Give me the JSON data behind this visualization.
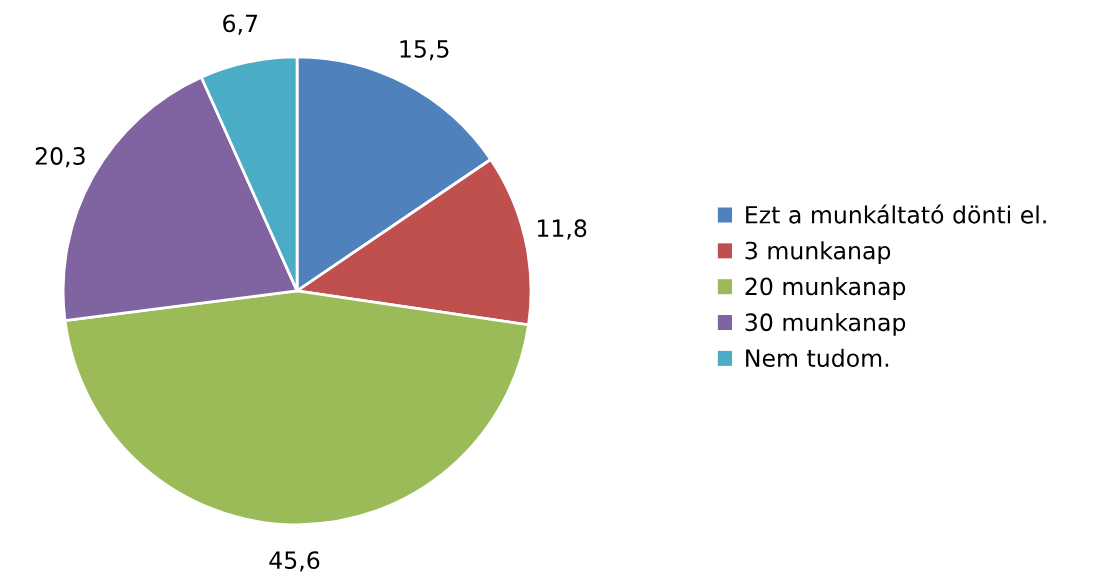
{
  "chart_data": {
    "type": "pie",
    "categories": [
      "Ezt a munkáltató dönti el.",
      "3 munkanap",
      "20 munkanap",
      "30 munkanap",
      "Nem tudom."
    ],
    "values": [
      15.5,
      11.8,
      45.6,
      20.3,
      6.7
    ],
    "value_labels": [
      "15,5",
      "11,8",
      "45,6",
      "20,3",
      "6,7"
    ],
    "colors": [
      "#4f81bd",
      "#c0504d",
      "#9bbb59",
      "#8064a2",
      "#4bacc6"
    ],
    "legend": "right"
  }
}
